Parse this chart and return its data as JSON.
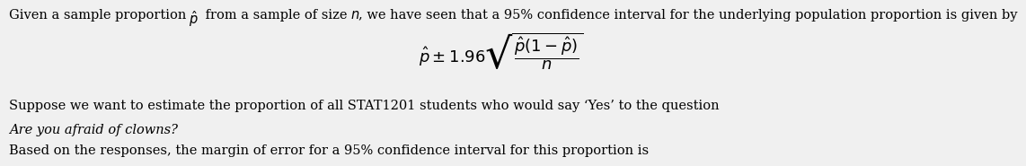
{
  "bg_color": "#f0f0f0",
  "text_color": "#000000",
  "line1_pre": "Given a sample proportion ",
  "line1_mid": " from a sample of size ",
  "line1_end": ", we have seen that a 95% confidence interval for the underlying population proportion is given by",
  "line3": "Suppose we want to estimate the proportion of all STAT1201 students who would say ‘Yes’ to the question",
  "line4_italic": "Are you afraid of clowns?",
  "line5": "Based on the responses, the margin of error for a 95% confidence interval for this proportion is",
  "font_size_main": 10.5,
  "font_size_formula": 13
}
